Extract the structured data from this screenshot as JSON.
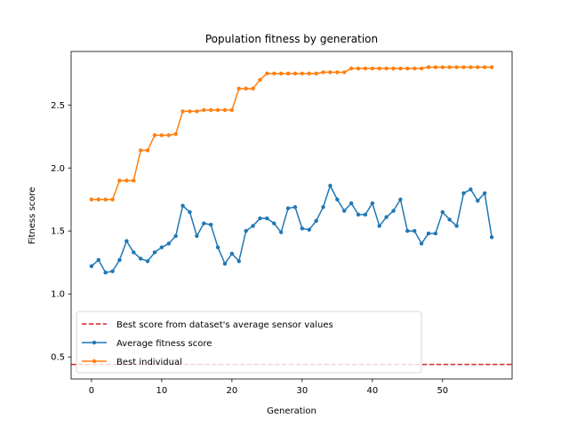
{
  "chart_data": {
    "type": "line",
    "title": "Population fitness by generation",
    "xlabel": "Generation",
    "ylabel": "Fitness score",
    "xlim": [
      -2.9,
      59.9
    ],
    "ylim": [
      0.325,
      2.925
    ],
    "x_ticks": [
      0,
      10,
      20,
      30,
      40,
      50
    ],
    "y_ticks": [
      0.5,
      1.0,
      1.5,
      2.0,
      2.5
    ],
    "x_tick_labels": [
      "0",
      "10",
      "20",
      "30",
      "40",
      "50"
    ],
    "y_tick_labels": [
      "0.5",
      "1.0",
      "1.5",
      "2.0",
      "2.5"
    ],
    "grid": false,
    "legend_position": "lower-left",
    "x": [
      0,
      1,
      2,
      3,
      4,
      5,
      6,
      7,
      8,
      9,
      10,
      11,
      12,
      13,
      14,
      15,
      16,
      17,
      18,
      19,
      20,
      21,
      22,
      23,
      24,
      25,
      26,
      27,
      28,
      29,
      30,
      31,
      32,
      33,
      34,
      35,
      36,
      37,
      38,
      39,
      40,
      41,
      42,
      43,
      44,
      45,
      46,
      47,
      48,
      49,
      50,
      51,
      52,
      53,
      54,
      55,
      56,
      57
    ],
    "hlines": [
      {
        "name": "Best score from dataset's average sensor values",
        "y": 0.44,
        "color": "#d62728",
        "style": "dashed"
      }
    ],
    "series": [
      {
        "name": "Average fitness score",
        "color": "#1f77b4",
        "marker": "dot",
        "values": [
          1.22,
          1.27,
          1.17,
          1.18,
          1.27,
          1.42,
          1.33,
          1.28,
          1.26,
          1.33,
          1.37,
          1.4,
          1.46,
          1.7,
          1.65,
          1.46,
          1.56,
          1.55,
          1.37,
          1.24,
          1.32,
          1.26,
          1.5,
          1.54,
          1.6,
          1.6,
          1.56,
          1.49,
          1.68,
          1.69,
          1.52,
          1.51,
          1.58,
          1.69,
          1.86,
          1.75,
          1.66,
          1.72,
          1.63,
          1.63,
          1.72,
          1.54,
          1.61,
          1.66,
          1.75,
          1.5,
          1.5,
          1.4,
          1.48,
          1.48,
          1.65,
          1.59,
          1.54,
          1.8,
          1.83,
          1.74,
          1.8,
          1.45
        ]
      },
      {
        "name": "Best individual",
        "color": "#ff7f0e",
        "marker": "dot",
        "values": [
          1.75,
          1.75,
          1.75,
          1.75,
          1.9,
          1.9,
          1.9,
          2.14,
          2.14,
          2.26,
          2.26,
          2.26,
          2.27,
          2.45,
          2.45,
          2.45,
          2.46,
          2.46,
          2.46,
          2.46,
          2.46,
          2.63,
          2.63,
          2.63,
          2.7,
          2.75,
          2.75,
          2.75,
          2.75,
          2.75,
          2.75,
          2.75,
          2.75,
          2.76,
          2.76,
          2.76,
          2.76,
          2.79,
          2.79,
          2.79,
          2.79,
          2.79,
          2.79,
          2.79,
          2.79,
          2.79,
          2.79,
          2.79,
          2.8,
          2.8,
          2.8,
          2.8,
          2.8,
          2.8,
          2.8,
          2.8,
          2.8,
          2.8
        ]
      }
    ]
  }
}
